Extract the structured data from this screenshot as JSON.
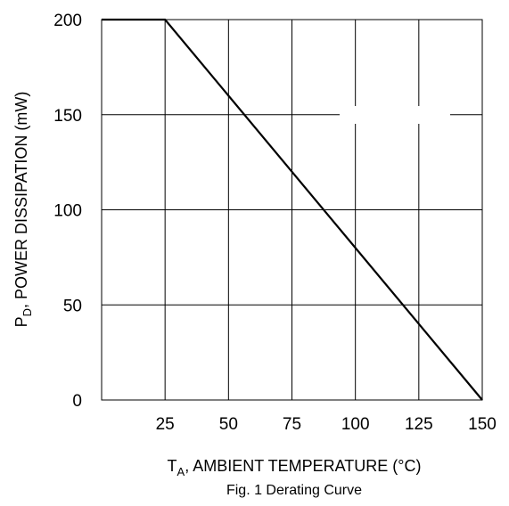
{
  "chart_data": {
    "type": "line",
    "caption": "Fig. 1  Derating Curve",
    "xlabel": {
      "main": "T",
      "sub": "A",
      "rest": ", AMBIENT TEMPERATURE (°C)"
    },
    "ylabel": {
      "main": "P",
      "sub": "D",
      "rest": ", POWER DISSIPATION (mW)"
    },
    "xlim": [
      0,
      150
    ],
    "ylim": [
      0,
      200
    ],
    "xticks": [
      25,
      50,
      75,
      100,
      125,
      150
    ],
    "yticks": [
      0,
      50,
      100,
      150,
      200
    ],
    "grid": true,
    "series": [
      {
        "x": [
          0,
          25,
          150
        ],
        "y": [
          200,
          200,
          0
        ]
      }
    ]
  }
}
